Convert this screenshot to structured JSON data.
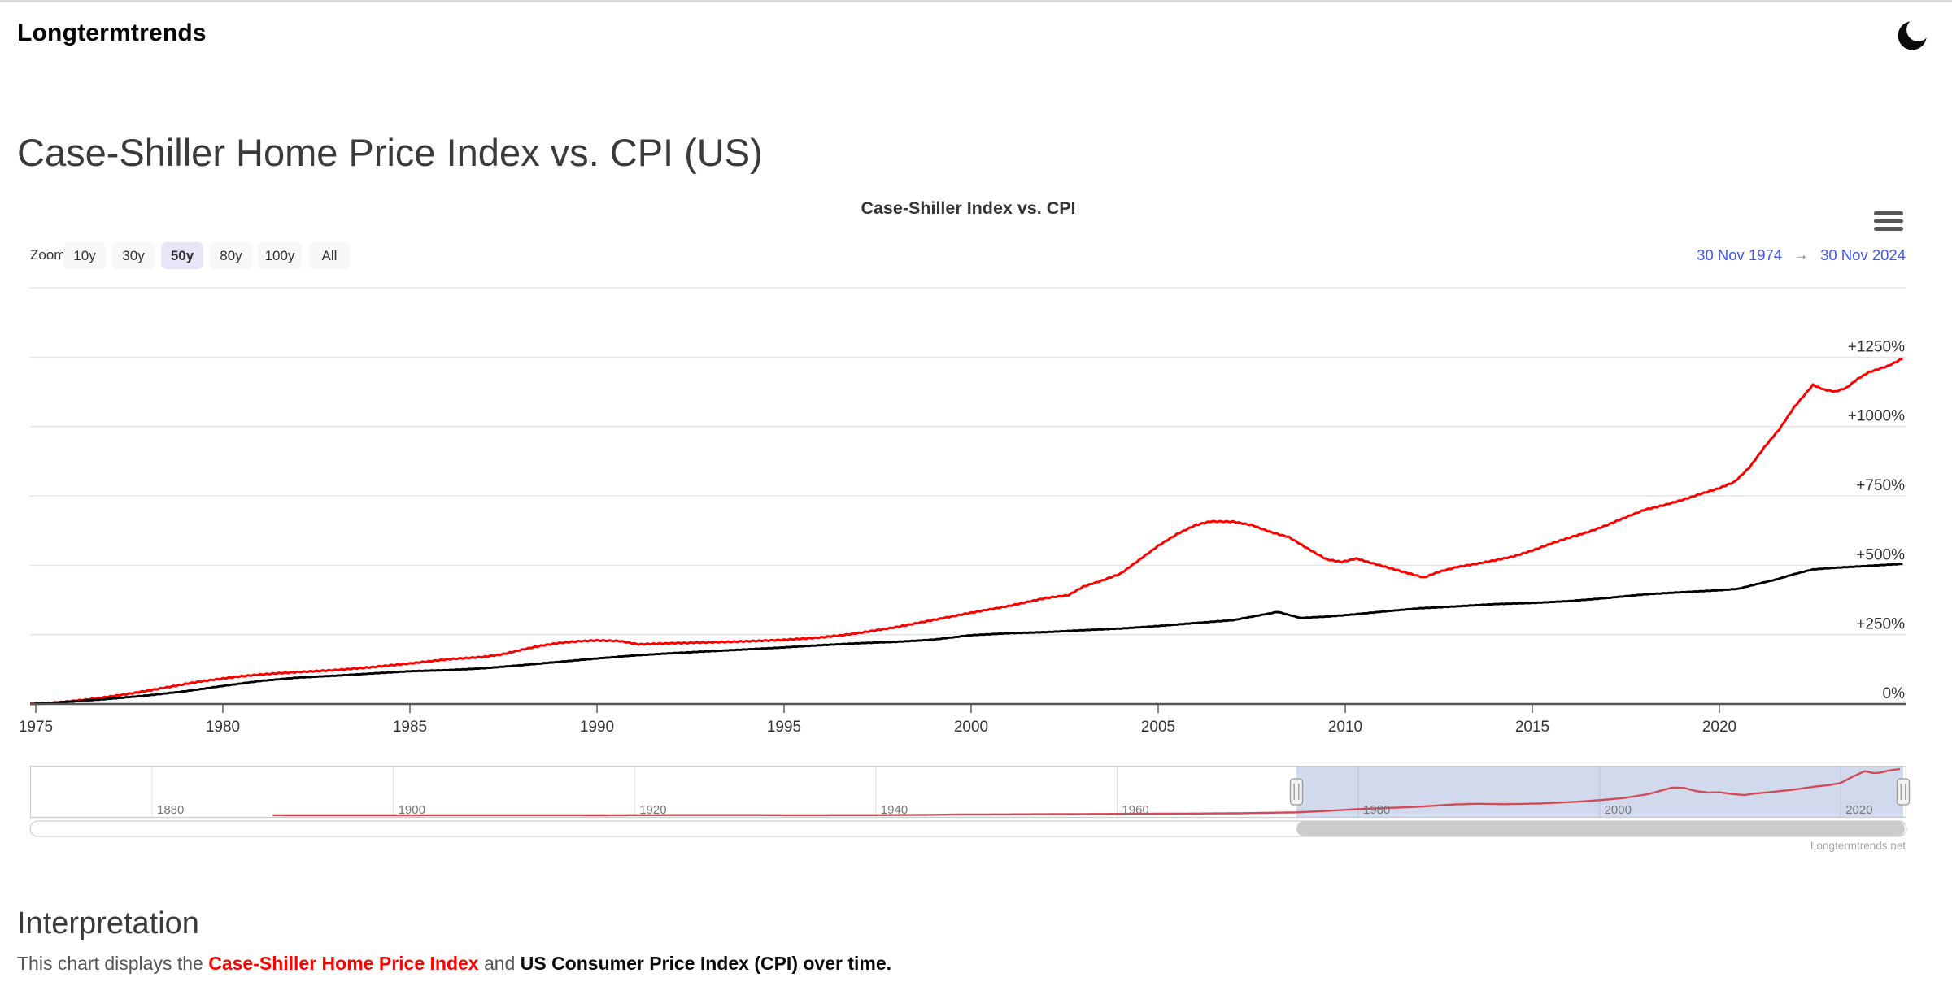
{
  "header": {
    "logo": "Longtermtrends",
    "theme_toggle_icon": "moon-icon"
  },
  "page": {
    "title": "Case-Shiller Home Price Index vs. CPI (US)"
  },
  "chart": {
    "title": "Case-Shiller Index vs. CPI",
    "menu_icon": "hamburger-icon",
    "range_selector": {
      "label": "Zoom",
      "buttons": [
        {
          "label": "10y",
          "selected": false
        },
        {
          "label": "30y",
          "selected": false
        },
        {
          "label": "50y",
          "selected": true
        },
        {
          "label": "80y",
          "selected": false
        },
        {
          "label": "100y",
          "selected": false
        },
        {
          "label": "All",
          "selected": false
        }
      ]
    },
    "date_range": {
      "start": "30 Nov 1974",
      "separator": "→",
      "end": "30 Nov 2024"
    },
    "watermark": "Longtermtrends.net",
    "accent_colors": {
      "date_text": "#4355ee",
      "selected_button_bg": "#e6e6f7"
    }
  },
  "chart_data": {
    "type": "line",
    "title": "Case-Shiller Index vs. CPI",
    "grid": true,
    "legend_position": "none",
    "x_axis": {
      "ticks": [
        {
          "year": 1975,
          "label": "1975"
        },
        {
          "year": 1980,
          "label": "1980"
        },
        {
          "year": 1985,
          "label": "1985"
        },
        {
          "year": 1990,
          "label": "1990"
        },
        {
          "year": 1995,
          "label": "1995"
        },
        {
          "year": 2000,
          "label": "2000"
        },
        {
          "year": 2005,
          "label": "2005"
        },
        {
          "year": 2010,
          "label": "2010"
        },
        {
          "year": 2015,
          "label": "2015"
        },
        {
          "year": 2020,
          "label": "2020"
        }
      ]
    },
    "y_axis": {
      "unit": "percent change",
      "range": [
        0,
        1500
      ],
      "top_gridline_value": 1500,
      "ticks": [
        {
          "value": 1250,
          "label": "+1250%"
        },
        {
          "value": 1000,
          "label": "+1000%"
        },
        {
          "value": 750,
          "label": "+750%"
        },
        {
          "value": 500,
          "label": "+500%"
        },
        {
          "value": 250,
          "label": "+250%"
        },
        {
          "value": 0,
          "label": "0%"
        }
      ]
    },
    "series": [
      {
        "name": "Case-Shiller Home Price Index",
        "color": "#ff0000",
        "jitter": 1.6,
        "points": [
          [
            1974.85,
            0
          ],
          [
            1975.5,
            5
          ],
          [
            1976,
            11
          ],
          [
            1976.5,
            18
          ],
          [
            1977,
            27
          ],
          [
            1977.5,
            37
          ],
          [
            1978,
            48
          ],
          [
            1978.5,
            60
          ],
          [
            1979,
            72
          ],
          [
            1979.5,
            83
          ],
          [
            1980,
            92
          ],
          [
            1980.5,
            100
          ],
          [
            1981,
            106
          ],
          [
            1981.5,
            111
          ],
          [
            1982,
            115
          ],
          [
            1983,
            122
          ],
          [
            1984,
            133
          ],
          [
            1985,
            146
          ],
          [
            1986,
            161
          ],
          [
            1987,
            170
          ],
          [
            1987.5,
            180
          ],
          [
            1988,
            196
          ],
          [
            1988.5,
            210
          ],
          [
            1989,
            220
          ],
          [
            1989.5,
            226
          ],
          [
            1990,
            229
          ],
          [
            1990.6,
            227
          ],
          [
            1991.1,
            215
          ],
          [
            1992,
            219
          ],
          [
            1993,
            222
          ],
          [
            1994,
            226
          ],
          [
            1995,
            231
          ],
          [
            1996,
            240
          ],
          [
            1996.5,
            247
          ],
          [
            1997,
            256
          ],
          [
            1998,
            277
          ],
          [
            1999,
            303
          ],
          [
            2000,
            329
          ],
          [
            2001,
            353
          ],
          [
            2002,
            382
          ],
          [
            2002.6,
            392
          ],
          [
            2003,
            423
          ],
          [
            2003.5,
            445
          ],
          [
            2004,
            470
          ],
          [
            2004.5,
            520
          ],
          [
            2005,
            570
          ],
          [
            2005.5,
            612
          ],
          [
            2006,
            645
          ],
          [
            2006.4,
            658
          ],
          [
            2007,
            657
          ],
          [
            2007.5,
            645
          ],
          [
            2008,
            620
          ],
          [
            2008.5,
            601
          ],
          [
            2009,
            560
          ],
          [
            2009.5,
            521
          ],
          [
            2009.9,
            512
          ],
          [
            2010.3,
            524
          ],
          [
            2010.6,
            512
          ],
          [
            2011,
            497
          ],
          [
            2011.5,
            478
          ],
          [
            2012.1,
            456
          ],
          [
            2012.5,
            476
          ],
          [
            2013,
            494
          ],
          [
            2013.5,
            505
          ],
          [
            2014,
            518
          ],
          [
            2014.5,
            532
          ],
          [
            2015,
            553
          ],
          [
            2015.5,
            578
          ],
          [
            2016,
            600
          ],
          [
            2016.5,
            620
          ],
          [
            2017,
            645
          ],
          [
            2017.5,
            673
          ],
          [
            2018,
            700
          ],
          [
            2018.5,
            716
          ],
          [
            2019,
            735
          ],
          [
            2019.5,
            757
          ],
          [
            2020,
            778
          ],
          [
            2020.4,
            800
          ],
          [
            2020.8,
            852
          ],
          [
            2021.2,
            925
          ],
          [
            2021.6,
            990
          ],
          [
            2022,
            1070
          ],
          [
            2022.5,
            1150
          ],
          [
            2022.8,
            1133
          ],
          [
            2023.1,
            1126
          ],
          [
            2023.4,
            1140
          ],
          [
            2023.7,
            1172
          ],
          [
            2024,
            1196
          ],
          [
            2024.5,
            1218
          ],
          [
            2024.9,
            1245
          ]
        ]
      },
      {
        "name": "US Consumer Price Index (CPI)",
        "color": "#000000",
        "jitter": 0.6,
        "points": [
          [
            1974.85,
            0
          ],
          [
            1976,
            9
          ],
          [
            1977,
            19
          ],
          [
            1978,
            31
          ],
          [
            1979,
            46
          ],
          [
            1980,
            65
          ],
          [
            1981,
            83
          ],
          [
            1982,
            95
          ],
          [
            1983,
            102
          ],
          [
            1984,
            110
          ],
          [
            1985,
            118
          ],
          [
            1986,
            122
          ],
          [
            1987,
            129
          ],
          [
            1988,
            140
          ],
          [
            1989,
            152
          ],
          [
            1990,
            164
          ],
          [
            1991,
            175
          ],
          [
            1992,
            183
          ],
          [
            1993,
            190
          ],
          [
            1994,
            197
          ],
          [
            1995,
            204
          ],
          [
            1996,
            212
          ],
          [
            1997,
            219
          ],
          [
            1998,
            224
          ],
          [
            1999,
            232
          ],
          [
            2000,
            248
          ],
          [
            2001,
            255
          ],
          [
            2002,
            259
          ],
          [
            2003,
            266
          ],
          [
            2004,
            272
          ],
          [
            2005,
            281
          ],
          [
            2006,
            292
          ],
          [
            2007,
            302
          ],
          [
            2008.2,
            332
          ],
          [
            2008.8,
            310
          ],
          [
            2009.5,
            315
          ],
          [
            2010,
            320
          ],
          [
            2011,
            333
          ],
          [
            2012,
            345
          ],
          [
            2013,
            352
          ],
          [
            2014,
            360
          ],
          [
            2015,
            364
          ],
          [
            2016,
            371
          ],
          [
            2017,
            382
          ],
          [
            2018,
            395
          ],
          [
            2019,
            403
          ],
          [
            2020,
            410
          ],
          [
            2020.5,
            415
          ],
          [
            2021,
            432
          ],
          [
            2021.5,
            448
          ],
          [
            2022,
            468
          ],
          [
            2022.5,
            485
          ],
          [
            2023,
            490
          ],
          [
            2023.5,
            494
          ],
          [
            2024,
            498
          ],
          [
            2024.9,
            505
          ]
        ]
      }
    ],
    "navigator": {
      "range_years": [
        1870,
        2025.5
      ],
      "selected_range_years": [
        1974.9,
        2024.9
      ],
      "mask_color": "rgba(102,133,194,0.3)",
      "ticks": [
        {
          "year": 1880,
          "label": "1880"
        },
        {
          "year": 1900,
          "label": "1900"
        },
        {
          "year": 1920,
          "label": "1920"
        },
        {
          "year": 1940,
          "label": "1940"
        },
        {
          "year": 1960,
          "label": "1960"
        },
        {
          "year": 1980,
          "label": "1980"
        },
        {
          "year": 2000,
          "label": "2000"
        },
        {
          "year": 2020,
          "label": "2020"
        }
      ],
      "series": {
        "name": "Case-Shiller full history",
        "color": "#d04a58",
        "points": [
          [
            1890,
            3.5
          ],
          [
            1900,
            3.4
          ],
          [
            1905,
            3.6
          ],
          [
            1910,
            3.7
          ],
          [
            1915,
            3.6
          ],
          [
            1917,
            3.3
          ],
          [
            1920,
            4.0
          ],
          [
            1925,
            4.6
          ],
          [
            1930,
            4.4
          ],
          [
            1933,
            3.7
          ],
          [
            1940,
            4.1
          ],
          [
            1944,
            5.2
          ],
          [
            1947,
            7.3
          ],
          [
            1950,
            7.8
          ],
          [
            1955,
            9.0
          ],
          [
            1960,
            10.2
          ],
          [
            1965,
            11.2
          ],
          [
            1970,
            13.0
          ],
          [
            1975,
            17.5
          ],
          [
            1978,
            26
          ],
          [
            1980,
            33
          ],
          [
            1982,
            37
          ],
          [
            1985,
            44
          ],
          [
            1988,
            55
          ],
          [
            1990,
            58
          ],
          [
            1992,
            56
          ],
          [
            1995,
            59
          ],
          [
            1998,
            67
          ],
          [
            2000,
            75
          ],
          [
            2002,
            85
          ],
          [
            2004,
            103
          ],
          [
            2006,
            134
          ],
          [
            2007,
            133
          ],
          [
            2008,
            118
          ],
          [
            2009,
            111
          ],
          [
            2010,
            112
          ],
          [
            2011,
            104
          ],
          [
            2012,
            99
          ],
          [
            2013,
            107
          ],
          [
            2014,
            112
          ],
          [
            2015,
            118
          ],
          [
            2016,
            124
          ],
          [
            2017,
            132
          ],
          [
            2018,
            140
          ],
          [
            2019,
            146
          ],
          [
            2020,
            156
          ],
          [
            2021,
            186
          ],
          [
            2022,
            212
          ],
          [
            2022.7,
            203
          ],
          [
            2023.2,
            204
          ],
          [
            2023.7,
            211
          ],
          [
            2024,
            215
          ],
          [
            2024.9,
            222
          ]
        ]
      }
    }
  },
  "interpretation": {
    "heading": "Interpretation",
    "segments": [
      {
        "text": "This chart displays the ",
        "style": "normal"
      },
      {
        "text": "Case-Shiller Home Price Index",
        "style": "bold-red"
      },
      {
        "text": " and ",
        "style": "normal"
      },
      {
        "text": "US Consumer Price Index (CPI) over time.",
        "style": "bold-black"
      }
    ]
  }
}
